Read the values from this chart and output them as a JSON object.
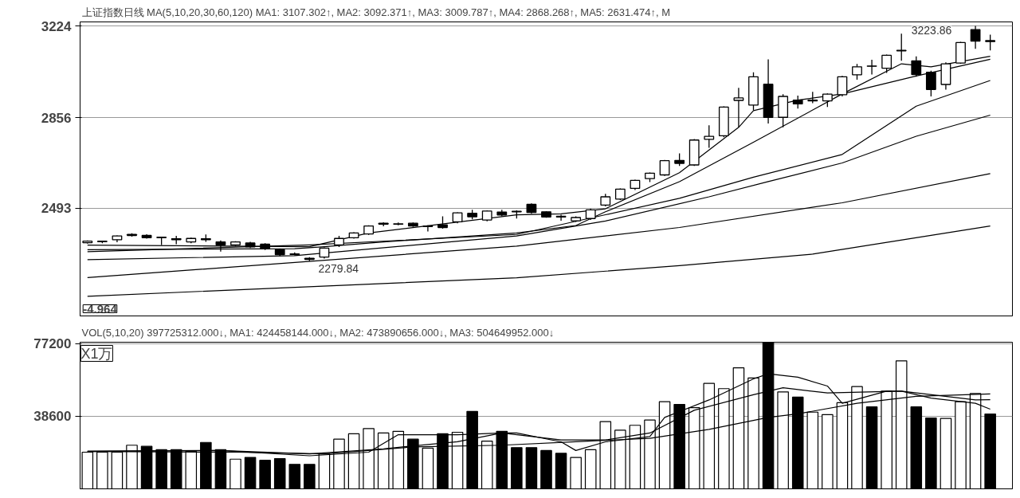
{
  "chart_data": [
    {
      "type": "candlestick",
      "title": "上证指数日线 MA(5,10,20,30,60,120) MA1: 3107.302↑, MA2: 3092.371↑, MA3: 3009.787↑, MA4: 2868.268↑, MA5: 2631.474↑, M",
      "categories": [
        null,
        null,
        null,
        null,
        null,
        null,
        null,
        null,
        null,
        null,
        null,
        null,
        null,
        null,
        null,
        null,
        null,
        null,
        null,
        null,
        null,
        null,
        null,
        null,
        null,
        null,
        null,
        null,
        null,
        null,
        null,
        null,
        null,
        null,
        null,
        null,
        null,
        null,
        null,
        null,
        null,
        null,
        null,
        null,
        null,
        null,
        null,
        null,
        null,
        null,
        null,
        null,
        null,
        null,
        null,
        null,
        null,
        null,
        null,
        null,
        null,
        null
      ],
      "ohlc": [
        [
          2354,
          2363,
          2350,
          2360
        ],
        [
          2358,
          2362,
          2352,
          2360
        ],
        [
          2366,
          2383,
          2356,
          2381
        ],
        [
          2383,
          2392,
          2378,
          2387
        ],
        [
          2383,
          2388,
          2370,
          2374
        ],
        [
          2376,
          2378,
          2345,
          2374
        ],
        [
          2370,
          2381,
          2348,
          2366
        ],
        [
          2357,
          2374,
          2352,
          2371
        ],
        [
          2370,
          2387,
          2357,
          2366
        ],
        [
          2357,
          2363,
          2318,
          2345
        ],
        [
          2345,
          2360,
          2340,
          2357
        ],
        [
          2353,
          2357,
          2333,
          2337
        ],
        [
          2348,
          2352,
          2325,
          2330
        ],
        [
          2326,
          2330,
          2300,
          2306
        ],
        [
          2309,
          2315,
          2303,
          2307
        ],
        [
          2291,
          2296,
          2279.84,
          2287
        ],
        [
          2296,
          2335,
          2290,
          2332
        ],
        [
          2345,
          2381,
          2337,
          2371
        ],
        [
          2374,
          2396,
          2370,
          2393
        ],
        [
          2389,
          2424,
          2385,
          2421
        ],
        [
          2428,
          2436,
          2420,
          2432
        ],
        [
          2428,
          2435,
          2424,
          2430
        ],
        [
          2432,
          2435,
          2417,
          2421
        ],
        [
          2419,
          2424,
          2399,
          2421
        ],
        [
          2426,
          2460,
          2410,
          2415
        ],
        [
          2438,
          2476,
          2432,
          2474
        ],
        [
          2472,
          2486,
          2448,
          2458
        ],
        [
          2445,
          2484,
          2440,
          2481
        ],
        [
          2477,
          2486,
          2460,
          2465
        ],
        [
          2480,
          2484,
          2451,
          2478
        ],
        [
          2508,
          2512,
          2470,
          2475
        ],
        [
          2478,
          2480,
          2454,
          2457
        ],
        [
          2460,
          2466,
          2442,
          2457
        ],
        [
          2442,
          2460,
          2437,
          2455
        ],
        [
          2451,
          2490,
          2445,
          2486
        ],
        [
          2505,
          2550,
          2500,
          2538
        ],
        [
          2529,
          2572,
          2525,
          2569
        ],
        [
          2572,
          2607,
          2565,
          2604
        ],
        [
          2611,
          2636,
          2597,
          2633
        ],
        [
          2626,
          2686,
          2622,
          2683
        ],
        [
          2684,
          2712,
          2662,
          2672
        ],
        [
          2666,
          2770,
          2662,
          2766
        ],
        [
          2769,
          2825,
          2735,
          2781
        ],
        [
          2783,
          2901,
          2777,
          2898
        ],
        [
          2925,
          2975,
          2817,
          2935
        ],
        [
          2906,
          3038,
          2886,
          3020
        ],
        [
          2990,
          3090,
          2832,
          2857
        ],
        [
          2857,
          2950,
          2817,
          2941
        ],
        [
          2926,
          2944,
          2892,
          2911
        ],
        [
          2923,
          2959,
          2914,
          2926
        ],
        [
          2923,
          2953,
          2899,
          2950
        ],
        [
          2948,
          3023,
          2941,
          3020
        ],
        [
          3028,
          3071,
          3008,
          3060
        ],
        [
          3063,
          3088,
          3029,
          3062
        ],
        [
          3054,
          3109,
          3035,
          3106
        ],
        [
          3124,
          3193,
          3084,
          3126
        ],
        [
          3084,
          3102,
          3020,
          3029
        ],
        [
          3038,
          3044,
          2941,
          2969
        ],
        [
          2989,
          3078,
          2968,
          3072
        ],
        [
          3075,
          3160,
          3072,
          3157
        ],
        [
          3209,
          3223.86,
          3132,
          3163
        ],
        [
          3165,
          3189,
          3126,
          3161
        ]
      ],
      "series": [
        {
          "type": "line",
          "color": "#000000",
          "values": [
            2344,
            null,
            null,
            null,
            null,
            null,
            null,
            null,
            null,
            null,
            null,
            null,
            null,
            null,
            null,
            2338,
            null,
            null,
            null,
            2393,
            null,
            null,
            null,
            null,
            null,
            null,
            null,
            null,
            null,
            2466,
            null,
            null,
            2470,
            null,
            null,
            2490,
            null,
            null,
            null,
            null,
            2635,
            null,
            null,
            null,
            2817,
            2884,
            null,
            null,
            2926,
            null,
            null,
            2951,
            null,
            null,
            null,
            3072,
            null,
            3060,
            null,
            null,
            null,
            3102
          ]
        },
        {
          "type": "line",
          "color": "#000000",
          "values": [
            2326,
            null,
            null,
            null,
            null,
            null,
            null,
            null,
            null,
            null,
            null,
            null,
            null,
            null,
            2330,
            null,
            2338,
            null,
            null,
            null,
            2357,
            null,
            null,
            null,
            null,
            null,
            null,
            null,
            null,
            2393,
            null,
            null,
            null,
            2423,
            null,
            2478,
            null,
            null,
            null,
            null,
            2599,
            null,
            null,
            null,
            null,
            2757,
            null,
            null,
            null,
            null,
            null,
            2951,
            null,
            null,
            null,
            null,
            3023,
            null,
            null,
            null,
            null,
            3090
          ]
        },
        {
          "type": "line",
          "color": "#000000",
          "values": [
            2318,
            null,
            null,
            null,
            null,
            null,
            null,
            null,
            null,
            null,
            null,
            null,
            null,
            null,
            null,
            2345,
            null,
            null,
            null,
            null,
            null,
            null,
            null,
            null,
            null,
            null,
            null,
            null,
            null,
            2387,
            null,
            null,
            null,
            null,
            null,
            2466,
            null,
            null,
            null,
            null,
            2532,
            null,
            null,
            null,
            null,
            2617,
            null,
            null,
            null,
            null,
            null,
            2708,
            null,
            null,
            null,
            null,
            2902,
            null,
            null,
            null,
            null,
            3005
          ]
        },
        {
          "type": "line",
          "color": "#000000",
          "values": [
            2286,
            null,
            null,
            null,
            null,
            null,
            null,
            null,
            null,
            null,
            null,
            null,
            null,
            null,
            2302,
            null,
            null,
            null,
            null,
            null,
            null,
            null,
            null,
            null,
            null,
            null,
            null,
            null,
            null,
            2381,
            null,
            null,
            null,
            null,
            null,
            2441,
            null,
            null,
            null,
            null,
            null,
            null,
            2538,
            null,
            null,
            null,
            2599,
            null,
            null,
            null,
            null,
            2674,
            null,
            null,
            null,
            null,
            2781,
            null,
            null,
            null,
            null,
            2866
          ]
        },
        {
          "type": "line",
          "color": "#000000",
          "values": [
            2214,
            null,
            null,
            null,
            null,
            null,
            null,
            null,
            null,
            null,
            null,
            null,
            null,
            null,
            null,
            null,
            null,
            null,
            null,
            null,
            null,
            null,
            null,
            null,
            null,
            null,
            null,
            null,
            null,
            2340,
            null,
            null,
            null,
            null,
            null,
            null,
            null,
            null,
            null,
            null,
            2415,
            null,
            null,
            null,
            null,
            null,
            null,
            null,
            null,
            null,
            null,
            2514,
            null,
            null,
            null,
            null,
            null,
            null,
            null,
            null,
            null,
            2631
          ]
        },
        {
          "type": "line",
          "color": "#000000",
          "values": [
            2139,
            null,
            null,
            null,
            null,
            null,
            null,
            null,
            null,
            null,
            null,
            null,
            null,
            null,
            null,
            null,
            null,
            null,
            null,
            null,
            null,
            null,
            null,
            null,
            null,
            null,
            null,
            null,
            null,
            2213,
            null,
            null,
            null,
            null,
            null,
            null,
            null,
            null,
            null,
            null,
            2262,
            null,
            null,
            null,
            null,
            null,
            null,
            null,
            null,
            2308,
            null,
            null,
            null,
            null,
            null,
            null,
            null,
            null,
            null,
            null,
            null,
            2421
          ]
        }
      ],
      "ylim": [
        2060,
        3240
      ],
      "yticks": [
        2493,
        2856,
        3224
      ],
      "grid": "y",
      "tick_labels": "y",
      "annotations": [
        "3223.86",
        "2279.84",
        "-4.964"
      ]
    },
    {
      "type": "bar",
      "title": "VOL(5,10,20) 397725312.000↓, MA1: 424458144.000↓, MA2: 473890656.000↓, MA3: 504649952.000↓",
      "categories": [
        null,
        null,
        null,
        null,
        null,
        null,
        null,
        null,
        null,
        null,
        null,
        null,
        null,
        null,
        null,
        null,
        null,
        null,
        null,
        null,
        null,
        null,
        null,
        null,
        null,
        null,
        null,
        null,
        null,
        null,
        null,
        null,
        null,
        null,
        null,
        null,
        null,
        null,
        null,
        null,
        null,
        null,
        null,
        null,
        null,
        null,
        null,
        null,
        null,
        null,
        null,
        null,
        null,
        null,
        null,
        null,
        null,
        null,
        null,
        null,
        null,
        null
      ],
      "series": [
        {
          "type": "bar",
          "values": [
            19500,
            19500,
            19500,
            23200,
            22600,
            20800,
            20800,
            20000,
            24700,
            20800,
            15800,
            16700,
            15200,
            16100,
            13000,
            13000,
            18600,
            26400,
            29300,
            32100,
            29700,
            30600,
            26400,
            21700,
            29300,
            30100,
            41200,
            25400,
            30600,
            21900,
            21900,
            20400,
            18900,
            16700,
            20800,
            35800,
            31200,
            33800,
            36600,
            46400,
            44900,
            43200,
            56100,
            53300,
            64400,
            59000,
            78000,
            51600,
            48800,
            40800,
            39500,
            45800,
            54400,
            43600,
            52000,
            68100,
            43600,
            37700,
            37500,
            46400,
            50700,
            39800
          ],
          "colors": [
            "#ffffff",
            "#ffffff",
            "#ffffff",
            "#ffffff",
            "#000000",
            "#000000",
            "#000000",
            "#ffffff",
            "#000000",
            "#000000",
            "#ffffff",
            "#000000",
            "#000000",
            "#000000",
            "#000000",
            "#000000",
            "#ffffff",
            "#ffffff",
            "#ffffff",
            "#ffffff",
            "#ffffff",
            "#ffffff",
            "#000000",
            "#ffffff",
            "#000000",
            "#ffffff",
            "#000000",
            "#ffffff",
            "#000000",
            "#000000",
            "#000000",
            "#000000",
            "#000000",
            "#ffffff",
            "#ffffff",
            "#ffffff",
            "#ffffff",
            "#ffffff",
            "#ffffff",
            "#ffffff",
            "#000000",
            "#ffffff",
            "#ffffff",
            "#ffffff",
            "#ffffff",
            "#ffffff",
            "#000000",
            "#ffffff",
            "#000000",
            "#ffffff",
            "#ffffff",
            "#ffffff",
            "#ffffff",
            "#000000",
            "#ffffff",
            "#ffffff",
            "#000000",
            "#000000",
            "#ffffff",
            "#ffffff",
            "#ffffff",
            "#000000"
          ]
        },
        {
          "type": "line",
          "color": "#000000",
          "values": [
            20100,
            null,
            null,
            null,
            null,
            null,
            null,
            null,
            null,
            20400,
            null,
            null,
            null,
            null,
            null,
            17600,
            null,
            null,
            null,
            19500,
            null,
            28800,
            null,
            null,
            null,
            28800,
            null,
            null,
            29700,
            29700,
            null,
            null,
            25000,
            20400,
            null,
            25000,
            null,
            null,
            27800,
            38000,
            null,
            null,
            47300,
            null,
            null,
            58500,
            61200,
            null,
            59400,
            null,
            54700,
            45500,
            null,
            null,
            52000,
            52000,
            null,
            48300,
            null,
            null,
            45500,
            42400
          ]
        },
        {
          "type": "line",
          "color": "#000000",
          "values": [
            19900,
            null,
            null,
            null,
            null,
            null,
            null,
            null,
            null,
            20400,
            null,
            null,
            null,
            null,
            null,
            18600,
            null,
            null,
            null,
            null,
            21300,
            null,
            null,
            null,
            null,
            25100,
            null,
            null,
            29700,
            null,
            null,
            null,
            26000,
            null,
            null,
            26000,
            null,
            null,
            29700,
            null,
            null,
            41800,
            null,
            null,
            null,
            50100,
            null,
            53800,
            null,
            null,
            51000,
            null,
            null,
            null,
            null,
            52000,
            null,
            null,
            null,
            null,
            47300,
            47400
          ]
        },
        {
          "type": "line",
          "color": "#000000",
          "values": [
            19900,
            null,
            null,
            null,
            null,
            null,
            null,
            null,
            null,
            null,
            19500,
            null,
            null,
            null,
            null,
            null,
            18600,
            null,
            null,
            null,
            null,
            null,
            22300,
            null,
            null,
            null,
            null,
            null,
            23200,
            null,
            null,
            null,
            null,
            25100,
            null,
            null,
            null,
            null,
            26900,
            null,
            null,
            null,
            31600,
            null,
            null,
            null,
            38000,
            null,
            39900,
            null,
            null,
            null,
            45500,
            null,
            null,
            null,
            49200,
            null,
            null,
            null,
            null,
            50500
          ]
        }
      ],
      "ylim": [
        0,
        78000
      ],
      "yticks": [
        38600,
        77200
      ],
      "grid": "y",
      "tick_labels": "y",
      "annotations": [
        "X1万"
      ]
    }
  ]
}
